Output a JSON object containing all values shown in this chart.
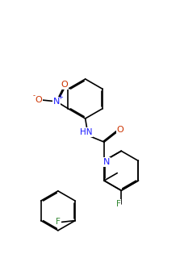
{
  "figsize": [
    2.23,
    3.15
  ],
  "dpi": 100,
  "bg_color": "#ffffff",
  "bond_color": "#000000",
  "bond_lw": 1.2,
  "atom_colors": {
    "N": "#1a1aff",
    "O": "#cc3300",
    "F": "#338833",
    "C": "#000000"
  },
  "font_size": 7.0
}
